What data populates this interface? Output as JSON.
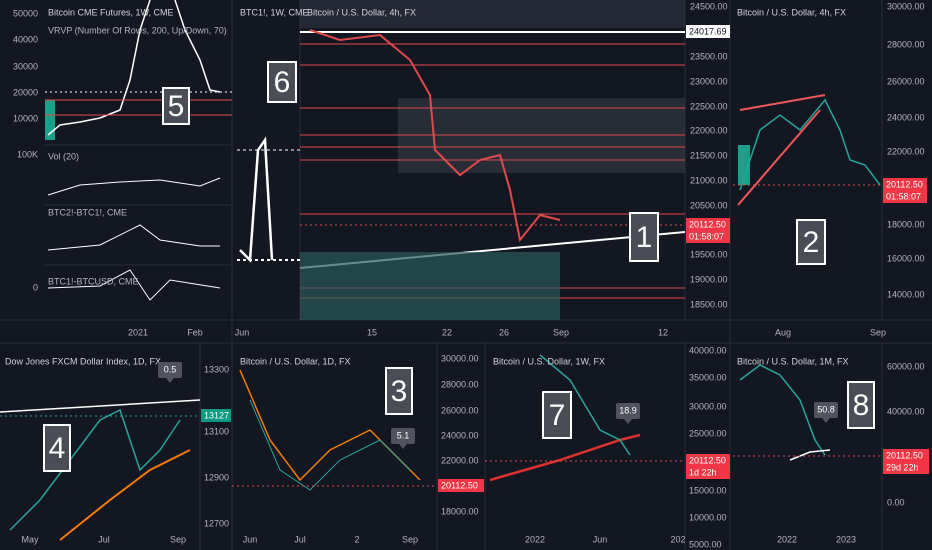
{
  "panels": [
    {
      "title": "Bitcoin CME Futures, 1W, CME",
      "indicator": "VRVP (Number Of Rows, 200, Up/Down, 70)",
      "badge": "5",
      "y_axis": [
        "50000",
        "40000",
        "30000",
        "20000",
        "10000"
      ],
      "x_axis": [
        "2021",
        "Feb"
      ],
      "panes": [
        {
          "title": "Vol (20)",
          "y_axis": [
            "100K"
          ]
        },
        {
          "title": "BTC2!-BTC1!, CME"
        },
        {
          "title": "BTC1!-BTCUSD, CME",
          "y_axis": [
            "0"
          ]
        }
      ]
    },
    {
      "title": "BTC1!, 1W, CME",
      "badge": "6",
      "x_axis": [
        "Jun"
      ]
    },
    {
      "title": "Bitcoin / U.S. Dollar, 4h, FX",
      "badge": "1",
      "y_axis": [
        "24500.00",
        "23500.00",
        "23000.00",
        "22500.00",
        "22000.00",
        "21500.00",
        "21000.00",
        "20500.00",
        "19500.00",
        "19000.00",
        "18500.00"
      ],
      "x_axis": [
        "15",
        "22",
        "26",
        "Sep",
        "12"
      ],
      "tags": [
        "24017.69",
        "20112.50",
        "01:58:07"
      ]
    },
    {
      "title": "Bitcoin / U.S. Dollar, 4h, FX",
      "badge": "2",
      "y_axis": [
        "30000.00",
        "28000.00",
        "26000.00",
        "24000.00",
        "22000.00",
        "18000.00",
        "16000.00",
        "14000.00"
      ],
      "x_axis": [
        "Aug",
        "Sep"
      ],
      "tags": [
        "20112.50",
        "01:58:07"
      ]
    },
    {
      "title": "Dow Jones FXCM Dollar Index, 1D, FX",
      "badge": "4",
      "value_box": "0.5",
      "y_axis": [
        "13300",
        "13100",
        "12900",
        "12700"
      ],
      "x_axis": [
        "May",
        "Jul",
        "Sep"
      ],
      "tags": [
        "13127"
      ]
    },
    {
      "title": "Bitcoin / U.S. Dollar, 1D, FX",
      "badge": "3",
      "value_box": "5.1",
      "y_axis": [
        "30000.00",
        "28000.00",
        "26000.00",
        "24000.00",
        "22000.00",
        "18000.00"
      ],
      "x_axis": [
        "Jun",
        "Jul",
        "2",
        "Sep"
      ],
      "tags": [
        "20112.50"
      ]
    },
    {
      "title": "Bitcoin / U.S. Dollar, 1W, FX",
      "badge": "7",
      "value_box": "18.9",
      "y_axis": [
        "40000.00",
        "35000.00",
        "30000.00",
        "25000.00",
        "15000.00",
        "10000.00",
        "5000.00"
      ],
      "x_axis": [
        "2022",
        "Jun",
        "202"
      ],
      "tags": [
        "20112.50",
        "1d 22h"
      ]
    },
    {
      "title": "Bitcoin / U.S. Dollar, 1M, FX",
      "badge": "8",
      "value_box": "50.8",
      "y_axis": [
        "60000.00",
        "40000.00",
        "0.00"
      ],
      "x_axis": [
        "2022",
        "2023"
      ],
      "tags": [
        "20112.50",
        "29d 22h"
      ]
    }
  ]
}
